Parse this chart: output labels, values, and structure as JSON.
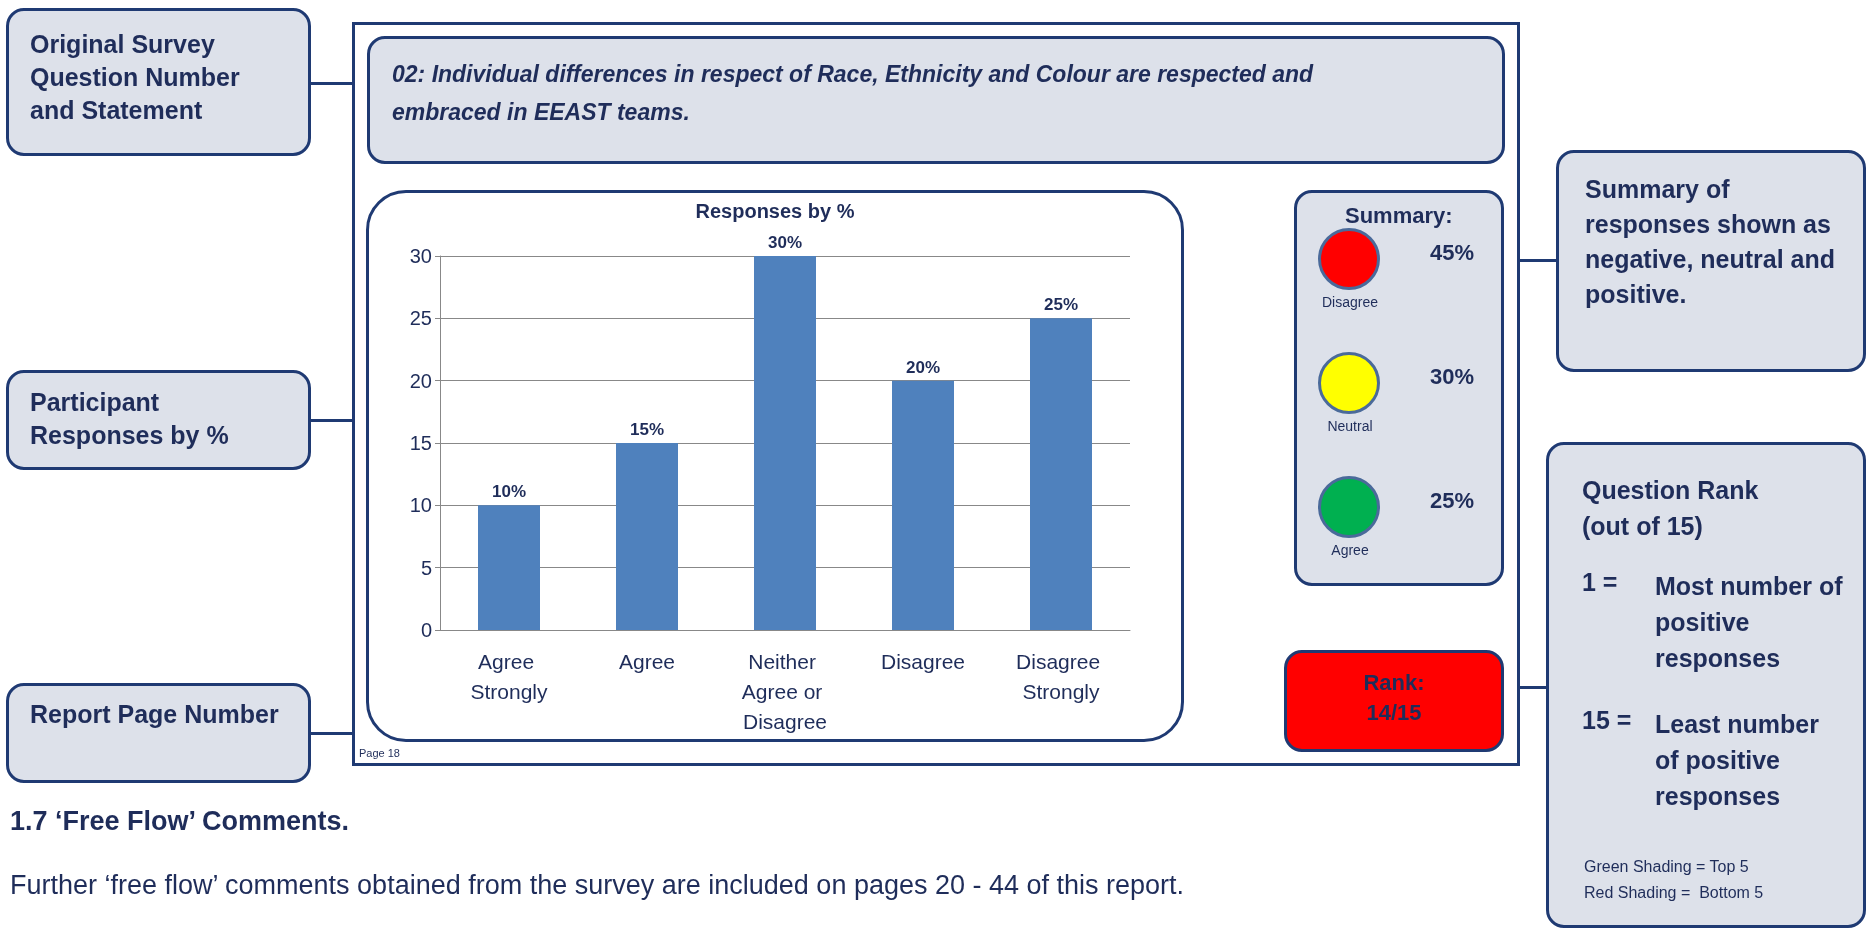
{
  "chart_data": {
    "type": "bar",
    "title": "Responses by %",
    "categories": [
      "Agree Strongly",
      "Agree",
      "Neither Agree or Disagree",
      "Disagree",
      "Disagree Strongly"
    ],
    "values": [
      10,
      15,
      30,
      20,
      25
    ],
    "color": "#4f81bd",
    "value_labels": [
      "10%",
      "15%",
      "30%",
      "20%",
      "25%"
    ],
    "ylim": [
      0,
      30
    ],
    "yticks": [
      0,
      5,
      10,
      15,
      20,
      25,
      30
    ],
    "grid": "y",
    "annotations": [
      "Original Survey Question Number and Statement",
      "02: Individual differences in respect of Race, Ethnicity and Colour are respected and embraced in EEAST teams.",
      "Participant Responses by %",
      "Report Page Number",
      "Page 18",
      "Summary:",
      "45%",
      "Disagree",
      "30%",
      "Neutral",
      "25%",
      "Agree",
      "Rank: 14/15",
      "Summary of responses shown as negative, neutral and positive.",
      "Question Rank (out of 15)",
      "1 =",
      "Most number of positive responses",
      "15 =",
      "Least number of positive responses",
      "Green Shading = Top 5",
      "Red Shading =  Bottom 5",
      "1.7 ‘Free Flow’ Comments.",
      "Further ‘free flow’ comments obtained from the survey are included on pages 20 - 44 of this report."
    ]
  }
}
